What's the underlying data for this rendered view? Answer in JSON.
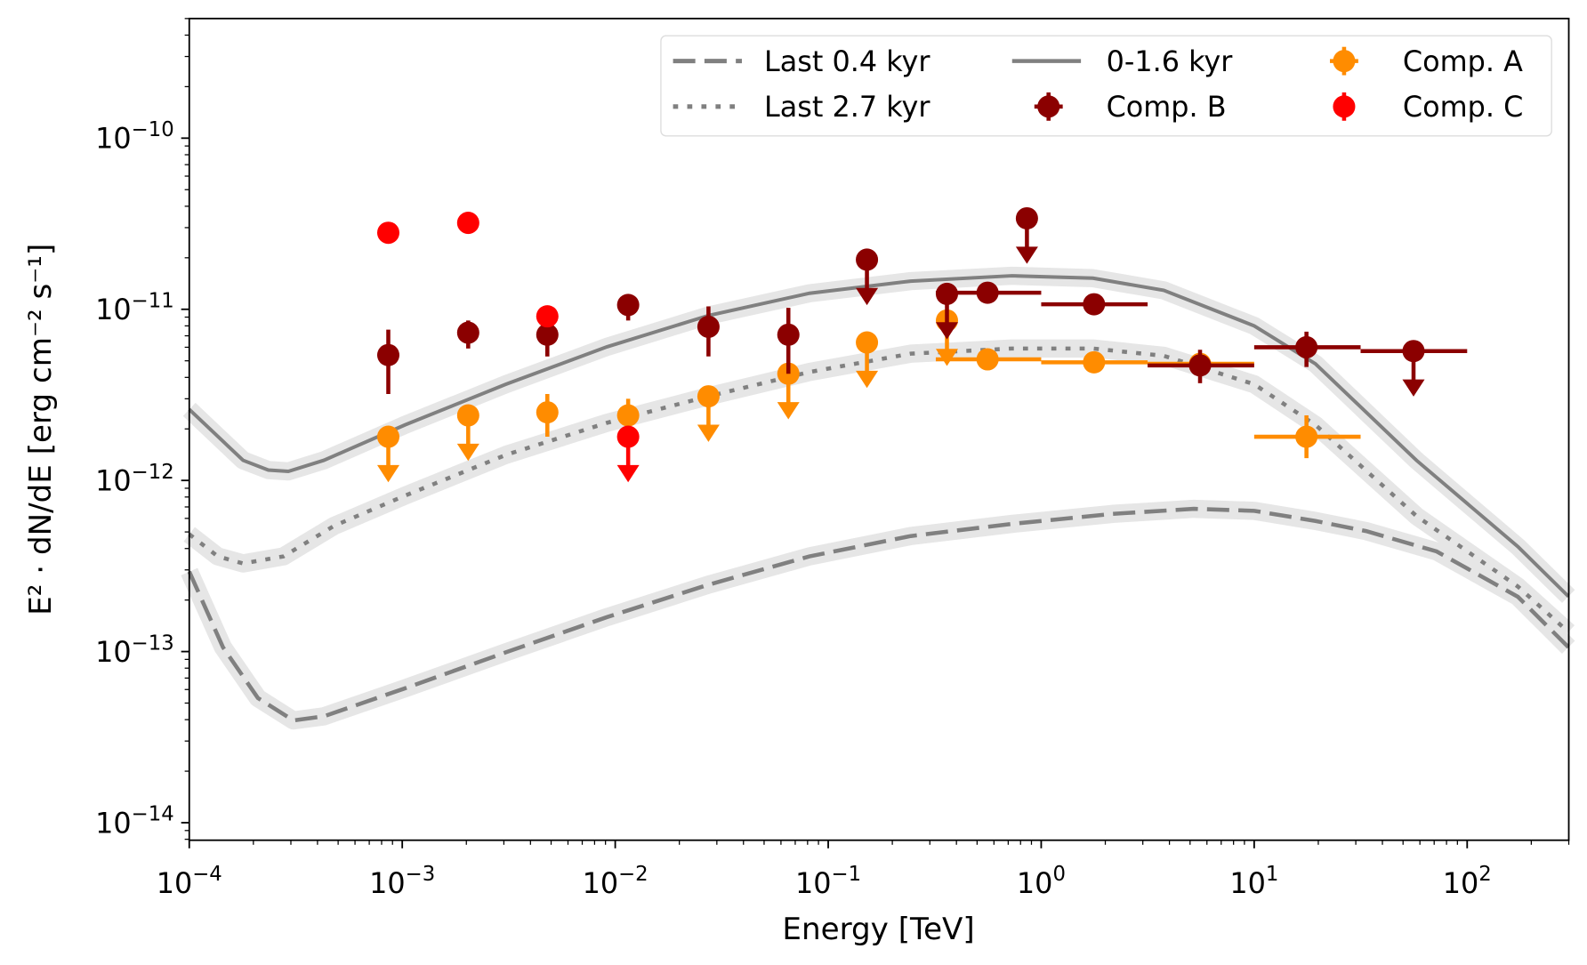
{
  "chart_data": {
    "type": "scatter",
    "title": "",
    "xlabel": "Energy [TeV]",
    "ylabel": "E² · dN/dE [erg cm⁻² s⁻¹]",
    "xscale": "log",
    "yscale": "log",
    "xlim": [
      0.0001,
      300
    ],
    "ylim": [
      7.9e-15,
      5e-10
    ],
    "grid": false,
    "legend_placement": "top-right",
    "x_tick_exponents": [
      -4,
      -3,
      -2,
      -1,
      0,
      1,
      2
    ],
    "y_tick_exponents": [
      -10,
      -11,
      -12,
      -13,
      -14
    ],
    "curves": [
      {
        "name": "Last 0.4 kyr",
        "style": "dashed",
        "color": "#808080",
        "points": [
          [
            0.0001,
            2.93e-13
          ],
          [
            0.000144,
            1.06e-13
          ],
          [
            0.00021,
            5.35e-14
          ],
          [
            0.000308,
            3.96e-14
          ],
          [
            0.000428,
            4.18e-14
          ],
          [
            0.00103,
            6.1e-14
          ],
          [
            0.00307,
            9.9e-14
          ],
          [
            0.00916,
            1.59e-13
          ],
          [
            0.0274,
            2.46e-13
          ],
          [
            0.0817,
            3.6e-13
          ],
          [
            0.244,
            4.73e-13
          ],
          [
            0.728,
            5.57e-13
          ],
          [
            2.17,
            6.38e-13
          ],
          [
            5.21,
            6.83e-13
          ],
          [
            10.0,
            6.64e-13
          ],
          [
            19.4,
            5.8e-13
          ],
          [
            33.5,
            5.06e-13
          ],
          [
            71.9,
            3.85e-13
          ],
          [
            173,
            2.09e-13
          ],
          [
            299,
            1.06e-13
          ]
        ]
      },
      {
        "name": "Last 2.7 kyr",
        "style": "dotted",
        "color": "#808080",
        "points": [
          [
            0.0001,
            4.85e-13
          ],
          [
            0.000136,
            3.6e-13
          ],
          [
            0.000179,
            3.27e-13
          ],
          [
            0.000277,
            3.6e-13
          ],
          [
            0.000478,
            5.42e-13
          ],
          [
            0.00103,
            8.15e-13
          ],
          [
            0.00307,
            1.41e-12
          ],
          [
            0.00916,
            2.17e-12
          ],
          [
            0.0274,
            3.1e-12
          ],
          [
            0.0817,
            4.3e-12
          ],
          [
            0.244,
            5.5e-12
          ],
          [
            0.728,
            5.9e-12
          ],
          [
            1.75,
            5.9e-12
          ],
          [
            3.76,
            5.35e-12
          ],
          [
            10.0,
            3.65e-12
          ],
          [
            19.4,
            2.11e-12
          ],
          [
            57.8,
            6.2e-13
          ],
          [
            173,
            2.4e-13
          ],
          [
            299,
            1.3e-13
          ]
        ]
      },
      {
        "name": "0-1.6 kyr",
        "style": "solid",
        "color": "#808080",
        "points": [
          [
            0.0001,
            2.6e-12
          ],
          [
            0.000179,
            1.31e-12
          ],
          [
            0.000235,
            1.15e-12
          ],
          [
            0.000292,
            1.13e-12
          ],
          [
            0.000428,
            1.31e-12
          ],
          [
            0.00103,
            2.11e-12
          ],
          [
            0.00307,
            3.65e-12
          ],
          [
            0.00916,
            6.04e-12
          ],
          [
            0.0274,
            9.2e-12
          ],
          [
            0.0817,
            1.24e-11
          ],
          [
            0.244,
            1.46e-11
          ],
          [
            0.728,
            1.57e-11
          ],
          [
            1.75,
            1.52e-11
          ],
          [
            3.76,
            1.29e-11
          ],
          [
            10.0,
            8e-12
          ],
          [
            19.4,
            4.8e-12
          ],
          [
            57.8,
            1.31e-12
          ],
          [
            173,
            4.1e-13
          ],
          [
            299,
            2.1e-13
          ]
        ]
      }
    ],
    "band_color": "#e6e6e6",
    "series": [
      {
        "name": "Comp. A",
        "color": "#ff8c00",
        "points": [
          {
            "x": 0.00086,
            "y": 1.8e-12,
            "ul": true
          },
          {
            "x": 0.00204,
            "y": 2.4e-12,
            "ul": true
          },
          {
            "x": 0.0048,
            "y": 2.5e-12,
            "ylo": 1.8e-12,
            "yhi": 3.2e-12
          },
          {
            "x": 0.0115,
            "y": 2.4e-12,
            "ylo": 1.9e-12,
            "yhi": 3e-12
          },
          {
            "x": 0.0274,
            "y": 3.1e-12,
            "ul": true
          },
          {
            "x": 0.065,
            "y": 4.2e-12,
            "ul": true
          },
          {
            "x": 0.152,
            "y": 6.4e-12,
            "ul": true
          },
          {
            "x": 0.361,
            "y": 8.6e-12,
            "ul": true
          },
          {
            "x": 0.56,
            "y": 5.1e-12,
            "xlo": 0.32,
            "xhi": 1.0
          },
          {
            "x": 1.77,
            "y": 4.9e-12,
            "xlo": 1.0,
            "xhi": 3.16
          },
          {
            "x": 5.57,
            "y": 4.8e-12,
            "xlo": 3.16,
            "xhi": 10
          },
          {
            "x": 17.6,
            "y": 1.8e-12,
            "xlo": 10,
            "xhi": 31.6,
            "ylo": 1.35e-12,
            "yhi": 2.4e-12
          }
        ]
      },
      {
        "name": "Comp. B",
        "color": "#8b0000",
        "points": [
          {
            "x": 0.00086,
            "y": 5.4e-12,
            "ylo": 3.2e-12,
            "yhi": 7.6e-12
          },
          {
            "x": 0.00204,
            "y": 7.3e-12,
            "ylo": 5.9e-12,
            "yhi": 8.6e-12
          },
          {
            "x": 0.0048,
            "y": 7.1e-12,
            "ylo": 5.3e-12,
            "yhi": 8.3e-12
          },
          {
            "x": 0.0115,
            "y": 1.06e-11,
            "ylo": 8.6e-12,
            "yhi": 1.2e-11
          },
          {
            "x": 0.0274,
            "y": 7.9e-12,
            "ylo": 5.3e-12,
            "yhi": 1.04e-11
          },
          {
            "x": 0.065,
            "y": 7.1e-12,
            "ylo": 4.2e-12,
            "yhi": 1.02e-11
          },
          {
            "x": 0.152,
            "y": 1.95e-11,
            "ul": true
          },
          {
            "x": 0.361,
            "y": 1.23e-11,
            "ul": true
          },
          {
            "x": 0.857,
            "y": 3.4e-11,
            "ul": true
          },
          {
            "x": 0.56,
            "y": 1.25e-11,
            "xlo": 0.32,
            "xhi": 1.0
          },
          {
            "x": 1.77,
            "y": 1.07e-11,
            "xlo": 1.0,
            "xhi": 3.16
          },
          {
            "x": 5.57,
            "y": 4.7e-12,
            "xlo": 3.16,
            "xhi": 10,
            "ylo": 3.7e-12,
            "yhi": 5.8e-12
          },
          {
            "x": 17.6,
            "y": 6e-12,
            "xlo": 10,
            "xhi": 31.6,
            "ylo": 4.6e-12,
            "yhi": 7.4e-12
          },
          {
            "x": 56,
            "y": 5.7e-12,
            "xlo": 31.6,
            "xhi": 100,
            "ul": true
          }
        ]
      },
      {
        "name": "Comp. C",
        "color": "#ff0000",
        "points": [
          {
            "x": 0.00086,
            "y": 2.8e-11
          },
          {
            "x": 0.00204,
            "y": 3.2e-11
          },
          {
            "x": 0.0048,
            "y": 9.1e-12
          },
          {
            "x": 0.0115,
            "y": 1.8e-12,
            "ul": true
          }
        ]
      }
    ],
    "legend": [
      "Last 0.4 kyr",
      "Last 2.7 kyr",
      "0-1.6 kyr",
      "Comp. B",
      "Comp. A",
      "Comp. C"
    ]
  }
}
